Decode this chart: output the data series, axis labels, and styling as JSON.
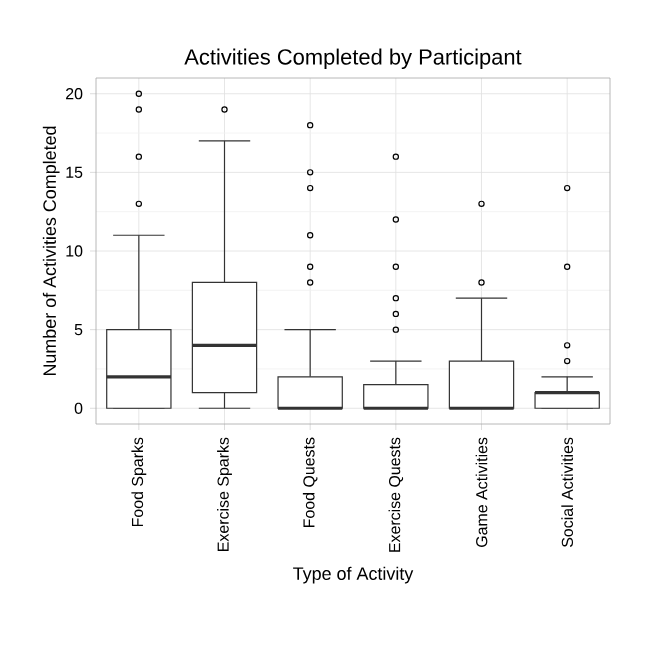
{
  "chart_data": {
    "type": "box",
    "title": "Activities Completed by Participant",
    "xlabel": "Type of Activity",
    "ylabel": "Number of Activities Completed",
    "categories": [
      "Food Sparks",
      "Exercise Sparks",
      "Food Quests",
      "Exercise Quests",
      "Game Activities",
      "Social Activities"
    ],
    "boxes": [
      {
        "low": 0,
        "q1": 0,
        "median": 2,
        "q3": 5,
        "high": 11,
        "outliers": [
          13,
          16,
          19,
          20
        ]
      },
      {
        "low": 0,
        "q1": 1,
        "median": 4,
        "q3": 8,
        "high": 17,
        "outliers": [
          19
        ]
      },
      {
        "low": 0,
        "q1": 0,
        "median": 0,
        "q3": 2,
        "high": 5,
        "outliers": [
          8,
          9,
          11,
          14,
          15,
          18
        ]
      },
      {
        "low": 0,
        "q1": 0,
        "median": 0,
        "q3": 1.5,
        "high": 3,
        "outliers": [
          5,
          6,
          7,
          9,
          12,
          16
        ]
      },
      {
        "low": 0,
        "q1": 0,
        "median": 0,
        "q3": 3,
        "high": 7,
        "outliers": [
          8,
          13
        ]
      },
      {
        "low": 0,
        "q1": 0,
        "median": 1,
        "q3": 1,
        "high": 2,
        "outliers": [
          3,
          4,
          9,
          14
        ]
      }
    ],
    "ylim": [
      -1,
      21
    ],
    "yticks": [
      0,
      5,
      10,
      15,
      20
    ],
    "grid": true,
    "color": "#333333",
    "marker": "circle"
  }
}
